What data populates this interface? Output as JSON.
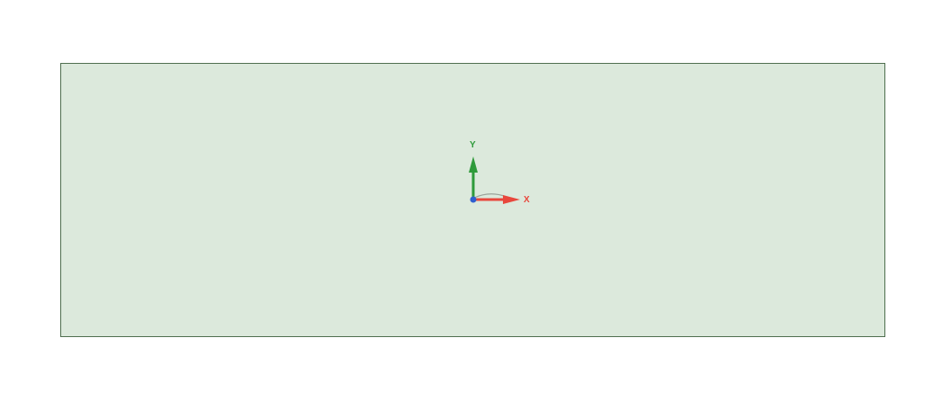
{
  "viewport": {
    "background_color": "#ffffff",
    "sketch_fill_color": "#dce9dc",
    "sketch_border_color": "#4f6f4f"
  },
  "triad": {
    "x_label": "X",
    "y_label": "Y",
    "x_color": "#e8473c",
    "y_color": "#2e9a3a",
    "origin_color": "#2f5fcf",
    "icon": "coordinate-triad-icon"
  }
}
